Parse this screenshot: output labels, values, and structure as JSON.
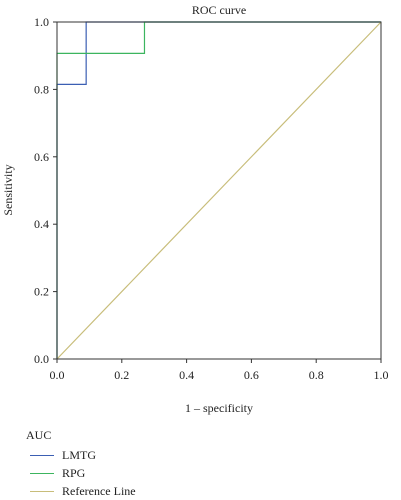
{
  "chart_data": {
    "type": "line",
    "title": "ROC curve",
    "xlabel": "1 – specificity",
    "ylabel": "Sensitivity",
    "xlim": [
      0,
      1
    ],
    "ylim": [
      0,
      1
    ],
    "x_ticks": [
      "0.0",
      "0.2",
      "0.4",
      "0.6",
      "0.8",
      "1.0"
    ],
    "y_ticks": [
      "0.0",
      "0.2",
      "0.4",
      "0.6",
      "0.8",
      "1.0"
    ],
    "grid": false,
    "legend_title": "AUC",
    "legend_position": "bottom-left",
    "series": [
      {
        "name": "LMTG",
        "color": "#3b5fb3",
        "points": [
          [
            0,
            0
          ],
          [
            0,
            0.815
          ],
          [
            0.09,
            0.815
          ],
          [
            0.09,
            1
          ],
          [
            1,
            1
          ]
        ]
      },
      {
        "name": "RPG",
        "color": "#3cb55f",
        "points": [
          [
            0,
            0
          ],
          [
            0,
            0.907
          ],
          [
            0.27,
            0.907
          ],
          [
            0.27,
            1
          ],
          [
            1,
            1
          ]
        ]
      },
      {
        "name": "Reference Line",
        "color": "#c8bd7a",
        "points": [
          [
            0,
            0
          ],
          [
            1,
            1
          ]
        ]
      }
    ]
  }
}
